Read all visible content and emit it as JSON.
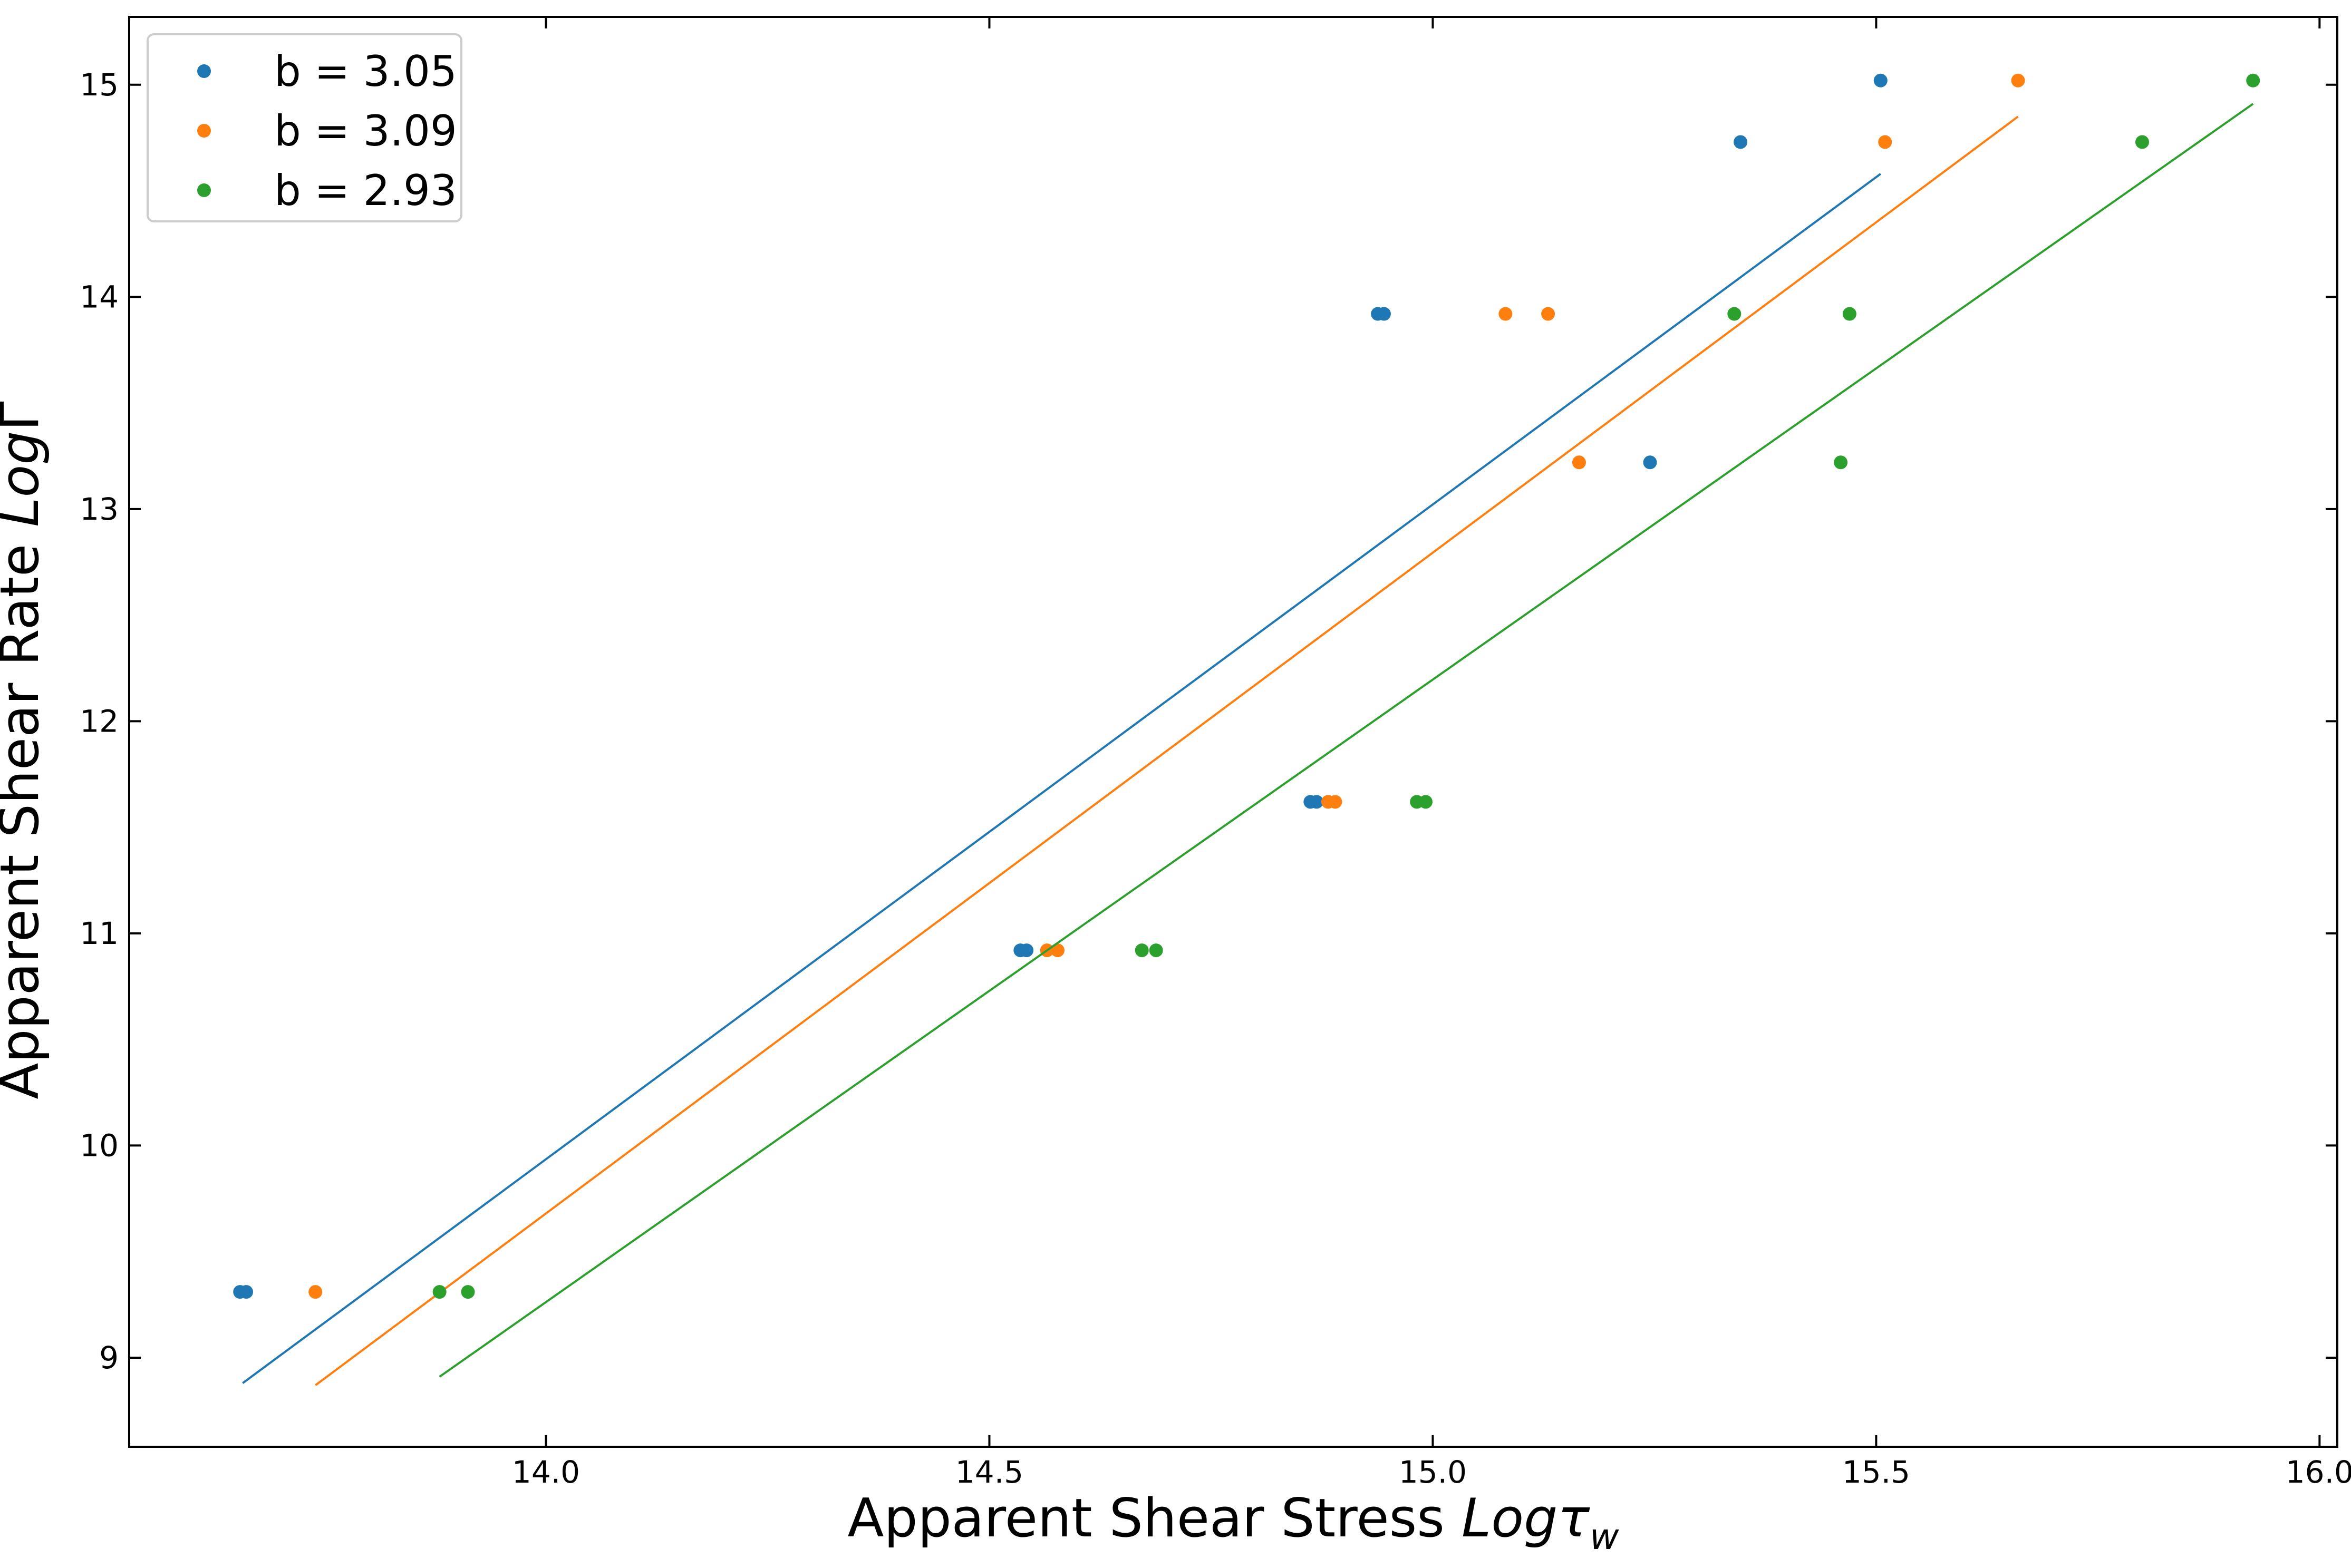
{
  "chart_data": {
    "type": "scatter",
    "title": "",
    "xlabel": "Apparent Shear Stress Logτ_w",
    "xlabel_parts": {
      "prefix": "Apparent Shear Stress ",
      "math": "Logτ",
      "subscript": "w"
    },
    "ylabel": "Apparent Shear Rate LogΓ",
    "ylabel_parts": {
      "prefix": "Apparent Shear Rate ",
      "math": "Log",
      "suffix": "Γ"
    },
    "xlim": [
      13.53,
      16.02
    ],
    "ylim": [
      8.58,
      15.32
    ],
    "xticks": [
      "14.0",
      "14.5",
      "15.0",
      "15.5",
      "16.0"
    ],
    "yticks": [
      "9",
      "10",
      "11",
      "12",
      "13",
      "14",
      "15"
    ],
    "grid": false,
    "legend_position": "upper-left",
    "series": [
      {
        "name": "b = 3.05",
        "color": "#1f77b4",
        "points": [
          [
            13.655,
            9.31
          ],
          [
            13.662,
            9.31
          ],
          [
            14.535,
            10.92
          ],
          [
            14.542,
            10.92
          ],
          [
            14.862,
            11.62
          ],
          [
            14.869,
            11.62
          ],
          [
            14.938,
            13.92
          ],
          [
            14.945,
            13.92
          ],
          [
            15.245,
            13.22
          ],
          [
            15.347,
            14.73
          ],
          [
            15.505,
            15.02
          ]
        ],
        "fit": [
          [
            13.658,
            8.88
          ],
          [
            15.505,
            14.58
          ]
        ]
      },
      {
        "name": "b = 3.09",
        "color": "#ff7f0e",
        "points": [
          [
            13.74,
            9.31
          ],
          [
            14.565,
            10.92
          ],
          [
            14.577,
            10.92
          ],
          [
            14.882,
            11.62
          ],
          [
            14.89,
            11.62
          ],
          [
            15.082,
            13.92
          ],
          [
            15.13,
            13.92
          ],
          [
            15.165,
            13.22
          ],
          [
            15.51,
            14.73
          ],
          [
            15.66,
            15.02
          ]
        ],
        "fit": [
          [
            13.74,
            8.87
          ],
          [
            15.66,
            14.85
          ]
        ]
      },
      {
        "name": "b = 2.93",
        "color": "#2ca02c",
        "points": [
          [
            13.88,
            9.31
          ],
          [
            13.912,
            9.31
          ],
          [
            14.672,
            10.92
          ],
          [
            14.688,
            10.92
          ],
          [
            14.982,
            11.62
          ],
          [
            14.992,
            11.62
          ],
          [
            15.34,
            13.92
          ],
          [
            15.47,
            13.92
          ],
          [
            15.46,
            13.22
          ],
          [
            15.8,
            14.73
          ],
          [
            15.925,
            15.02
          ]
        ],
        "fit": [
          [
            13.88,
            8.91
          ],
          [
            15.925,
            14.91
          ]
        ]
      }
    ]
  }
}
